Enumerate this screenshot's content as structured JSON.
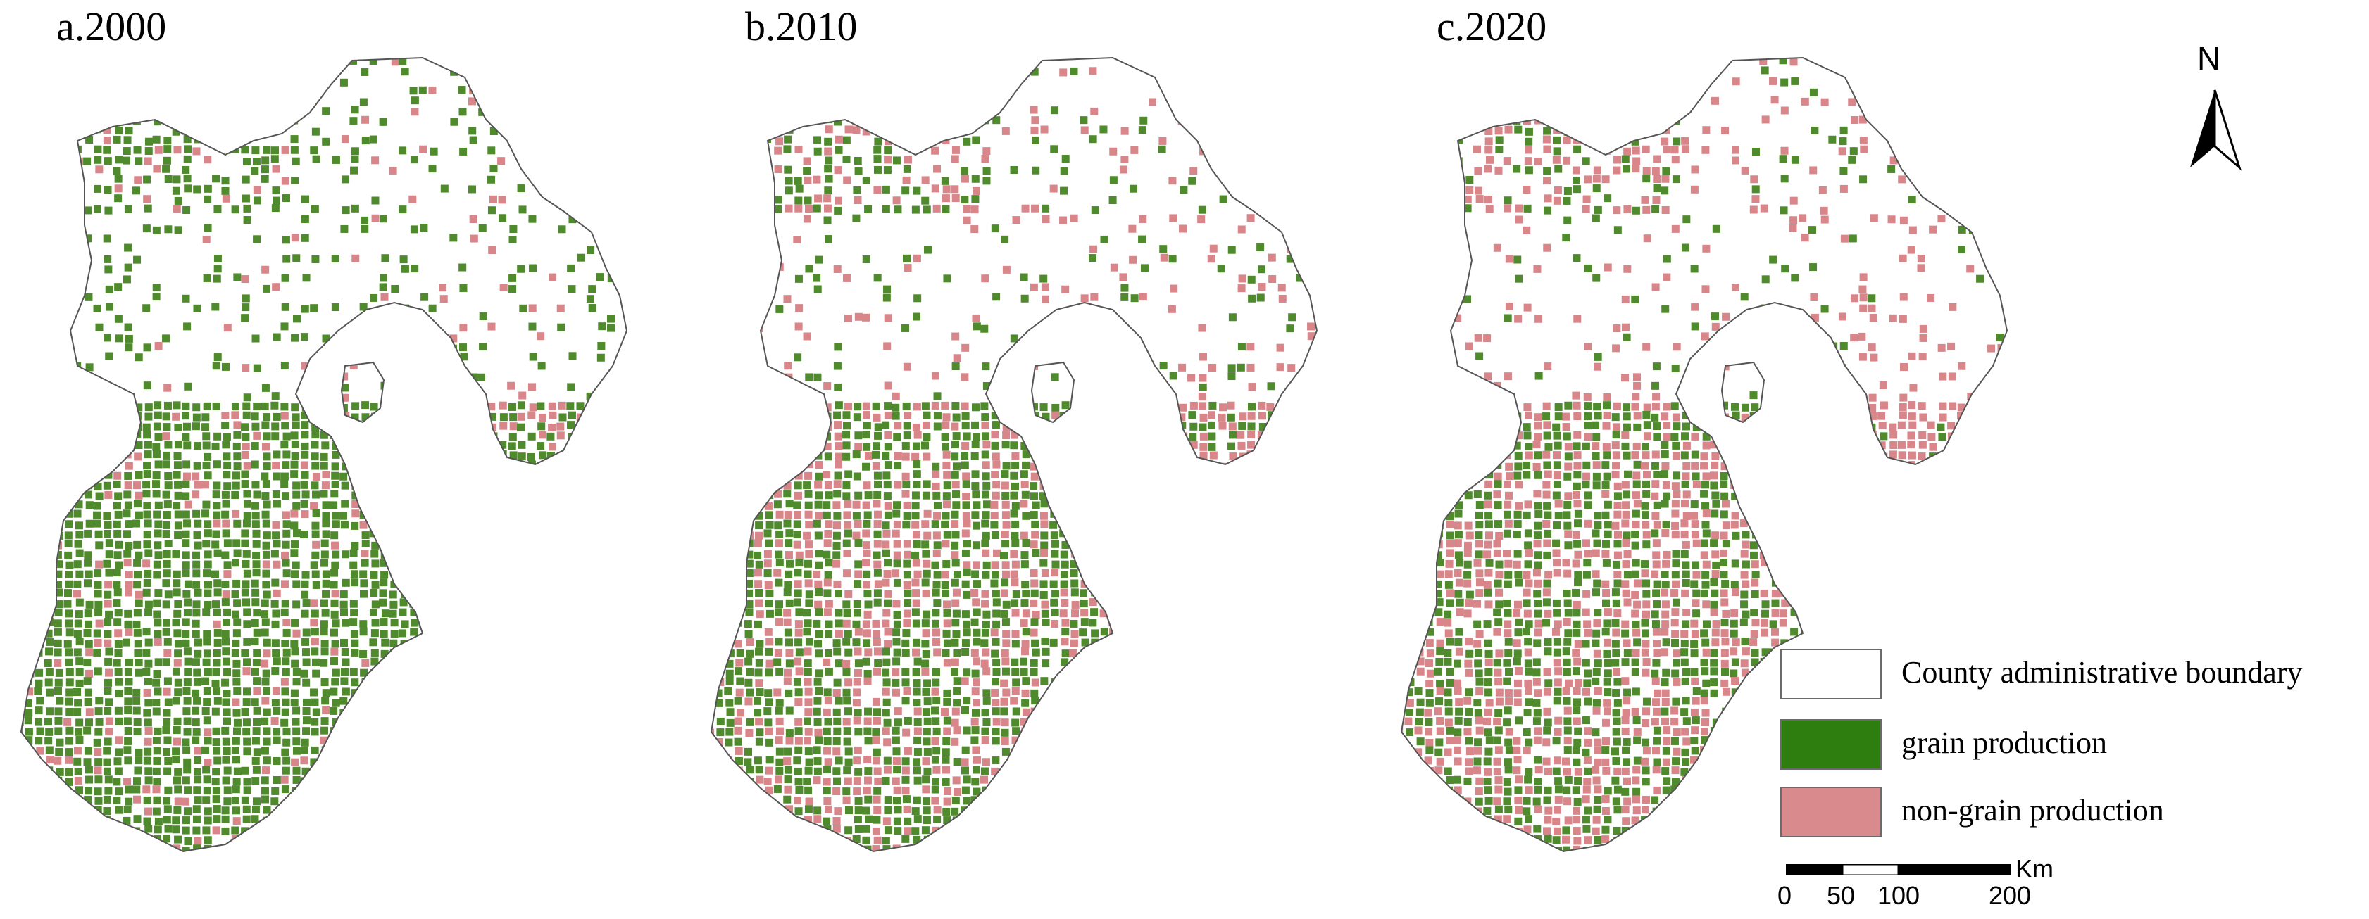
{
  "panels": [
    {
      "title": "a.2000",
      "non_grain_level": 0.12
    },
    {
      "title": "b.2010",
      "non_grain_level": 0.42
    },
    {
      "title": "c.2020",
      "non_grain_level": 0.55
    }
  ],
  "north_arrow": {
    "label": "N"
  },
  "legend": {
    "items": [
      {
        "label": "County administrative boundary",
        "color": "#ffffff"
      },
      {
        "label": "grain production",
        "color": "#2e7d0f"
      },
      {
        "label": "non-grain production",
        "color": "#d98a8c"
      }
    ]
  },
  "scale_bar": {
    "unit": "Km",
    "ticks": [
      "0",
      "50",
      "100",
      "200"
    ]
  },
  "colors": {
    "grain": "#4f8a2c",
    "non_grain": "#d8868a",
    "boundary": "#555555"
  }
}
